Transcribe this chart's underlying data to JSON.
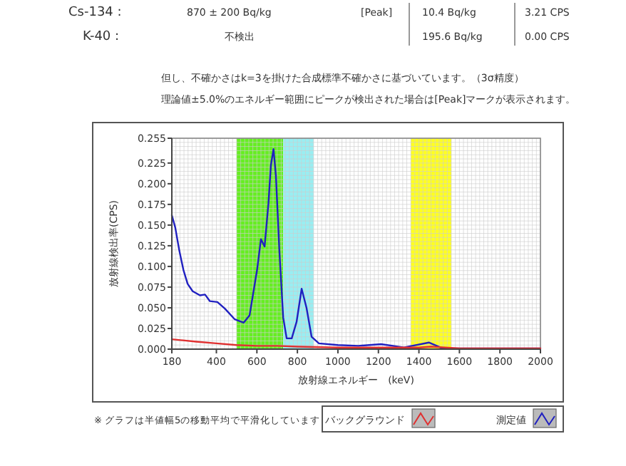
{
  "chart_data": {
    "type": "line",
    "xlabel": "放射線エネルギー　(keV)",
    "ylabel": "放射線検出率(CPS)",
    "annotations": [
      "Cs-134 :",
      "870 ± 200 Bq/kg",
      "[Peak]",
      "10.4 Bq/kg",
      "3.21 CPS",
      "K-40 :",
      "不検出",
      "195.6 Bq/kg",
      "0.00 CPS",
      "但し、不確かさはk=3を掛けた合成標準不確かさに基づいています。（3σ精度）",
      "理論値±5.0%のエネルギー範囲にピークが検出された場合は[Peak]マークが表示されます。",
      "※ グラフは半値幅5の移動平均で平滑化しています"
    ],
    "series": [
      {
        "name": "バックグラウンド",
        "color": "#e03030",
        "x": [
          180,
          300,
          400,
          500,
          600,
          700,
          800,
          1000,
          1200,
          1400,
          1460,
          1600,
          1800,
          2000
        ],
        "values": [
          0.012,
          0.009,
          0.007,
          0.005,
          0.004,
          0.004,
          0.003,
          0.002,
          0.002,
          0.002,
          0.003,
          0.001,
          0.001,
          0.001
        ]
      },
      {
        "name": "測定値",
        "color": "#2020c0",
        "x": [
          180,
          197,
          217,
          237,
          258,
          283,
          319,
          344,
          368,
          405,
          442,
          491,
          535,
          564,
          601,
          620,
          638,
          657,
          669,
          682,
          694,
          711,
          730,
          747,
          772,
          796,
          821,
          845,
          870,
          906,
          1000,
          1101,
          1213,
          1326,
          1449,
          1517,
          1663,
          2000
        ],
        "values": [
          0.162,
          0.147,
          0.119,
          0.096,
          0.079,
          0.07,
          0.065,
          0.066,
          0.058,
          0.057,
          0.049,
          0.036,
          0.032,
          0.041,
          0.096,
          0.133,
          0.124,
          0.176,
          0.222,
          0.242,
          0.21,
          0.119,
          0.038,
          0.013,
          0.013,
          0.033,
          0.073,
          0.05,
          0.015,
          0.007,
          0.005,
          0.004,
          0.006,
          0.002,
          0.008,
          0.001,
          0.001,
          0.001
        ]
      }
    ],
    "bands": [
      {
        "axis": "x",
        "from": 500,
        "to": 730,
        "color": "#66ee22"
      },
      {
        "axis": "x",
        "from": 730,
        "to": 880,
        "color": "#99eef2"
      },
      {
        "axis": "x",
        "from": 1360,
        "to": 1560,
        "color": "#ffff22"
      }
    ],
    "xlim": [
      180,
      2000
    ],
    "ylim": [
      0,
      0.255
    ],
    "xticks": [
      180,
      400,
      600,
      800,
      1000,
      1200,
      1400,
      1600,
      1800,
      2000
    ],
    "yticks": [
      {
        "value": 0,
        "label": "0.000"
      },
      {
        "value": 0.025,
        "label": "0.025"
      },
      {
        "value": 0.05,
        "label": "0.050"
      },
      {
        "value": 0.075,
        "label": "0.075"
      },
      {
        "value": 0.1,
        "label": "0.100"
      },
      {
        "value": 0.125,
        "label": "0.125"
      },
      {
        "value": 0.15,
        "label": "0.150"
      },
      {
        "value": 0.175,
        "label": "0.175"
      },
      {
        "value": 0.2,
        "label": "0.200"
      },
      {
        "value": 0.225,
        "label": "0.225"
      },
      {
        "value": 0.255,
        "label": "0.255"
      }
    ],
    "grid": true,
    "legend": "bottom right"
  }
}
